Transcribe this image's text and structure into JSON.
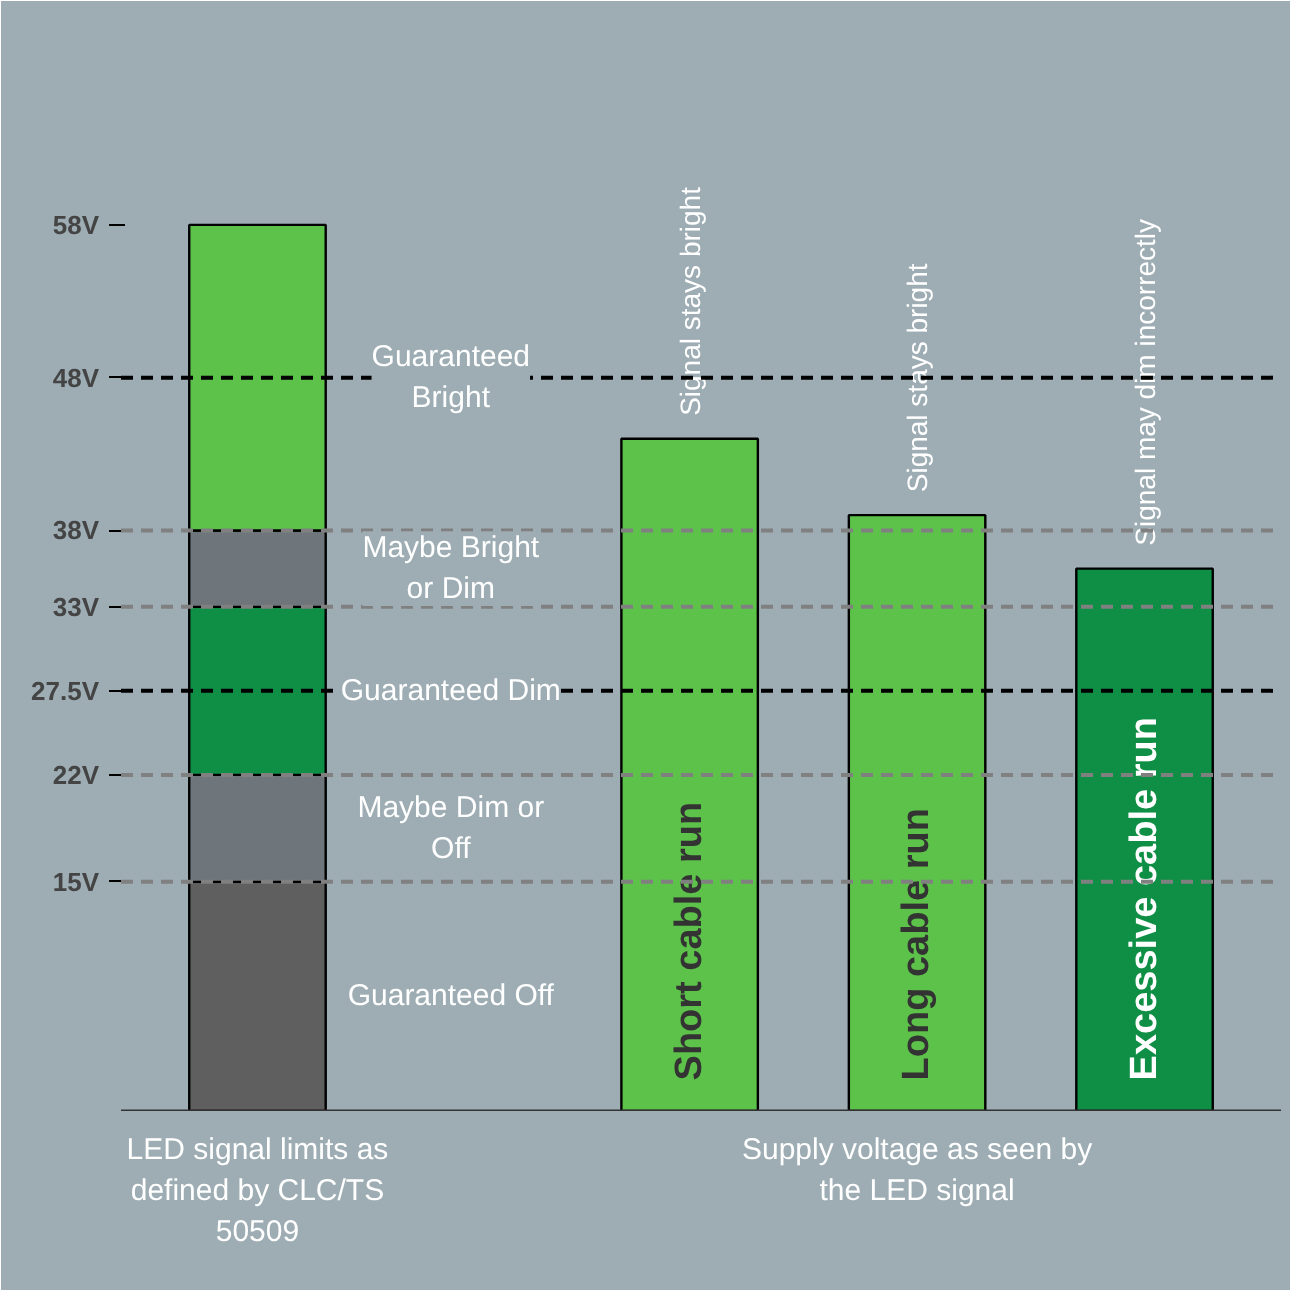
{
  "chart_data": {
    "type": "bar",
    "stacked": true,
    "categories": [
      null,
      "Short cable run",
      "Long cable run",
      "Excessive cable run"
    ],
    "series": [
      {
        "name": "Guaranteed Off",
        "color": "#5f5f5f",
        "values": [
          15,
          null,
          null,
          null
        ]
      },
      {
        "name": "Maybe Dim or Off",
        "color": "#6e767b",
        "values": [
          7,
          null,
          null,
          null
        ]
      },
      {
        "name": "Guaranteed Dim",
        "color": "#0f8f45",
        "values": [
          11,
          null,
          null,
          null
        ]
      },
      {
        "name": "Maybe Bright or Dim",
        "color": "#6e767b",
        "values": [
          5,
          null,
          null,
          null
        ]
      },
      {
        "name": "Guaranteed Bright",
        "color": "#5dc24a",
        "values": [
          20,
          null,
          null,
          null
        ]
      },
      {
        "colors": [
          null,
          "#5dc24a",
          "#5dc24a",
          "#0f8f45"
        ],
        "values": [
          null,
          44,
          39,
          35.5
        ]
      }
    ],
    "ylim": [
      0,
      72
    ],
    "yticks": [
      {
        "value": 15,
        "label": "15V"
      },
      {
        "value": 22,
        "label": "22V"
      },
      {
        "value": 27.5,
        "label": "27.5V"
      },
      {
        "value": 33,
        "label": "33V"
      },
      {
        "value": 38,
        "label": "38V"
      },
      {
        "value": 48,
        "label": "48V"
      },
      {
        "value": 58,
        "label": "58V"
      }
    ],
    "ref_lines": [
      {
        "axis": "y",
        "value": 48,
        "color": "#000000",
        "line_style": "dashed"
      },
      {
        "axis": "y",
        "value": 27.5,
        "color": "#000000",
        "line_style": "dashed"
      },
      {
        "axis": "y",
        "value": 38,
        "color": "#808080",
        "line_style": "dashed"
      },
      {
        "axis": "y",
        "value": 33,
        "color": "#808080",
        "line_style": "dashed"
      },
      {
        "axis": "y",
        "value": 22,
        "color": "#808080",
        "line_style": "dashed"
      },
      {
        "axis": "y",
        "value": 15,
        "color": "#808080",
        "line_style": "dashed"
      }
    ],
    "annotations": [
      "Signal stays bright",
      "Signal stays bright",
      "Signal may dim incorrectly",
      "LED signal limits as defined by CLC/TS 50509",
      "Supply voltage as seen by the LED signal"
    ]
  }
}
